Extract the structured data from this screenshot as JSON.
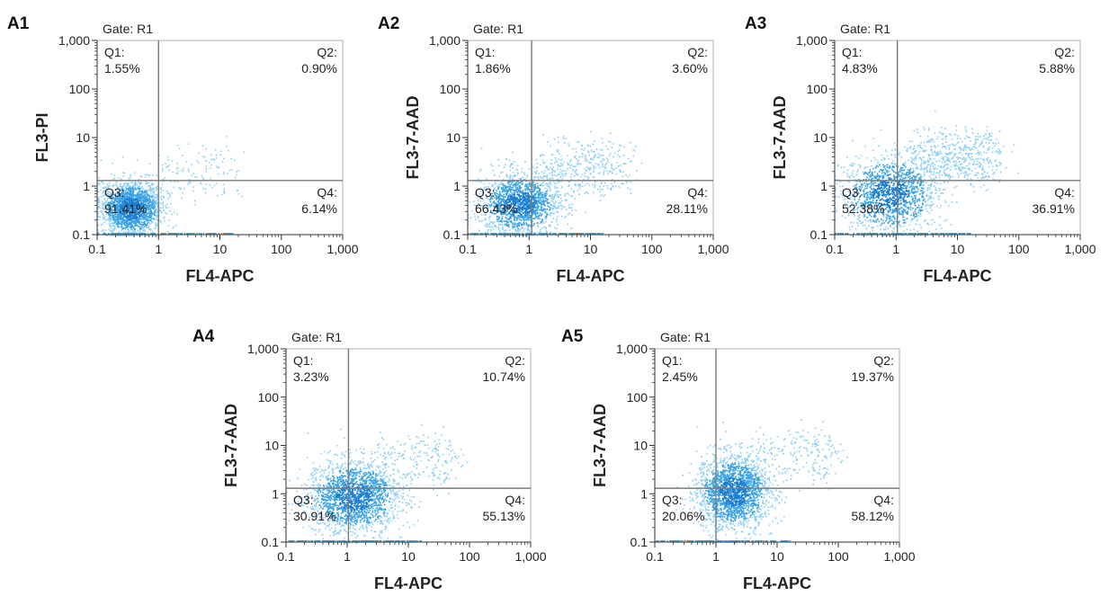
{
  "chart_data": [
    {
      "type": "scatter",
      "panel_label": "A1",
      "gate": "Gate: R1",
      "xlabel": "FL4-APC",
      "ylabel": "FL3-PI",
      "xscale": "log",
      "yscale": "log",
      "xlim": [
        0.1,
        1000
      ],
      "ylim": [
        0.1,
        1000
      ],
      "x_ticks": [
        "0.1",
        "1",
        "10",
        "100",
        "1,000"
      ],
      "y_ticks": [
        "0.1",
        "1",
        "10",
        "100",
        "1,000"
      ],
      "quadrant_gate": {
        "x": 1,
        "y": 1.3
      },
      "quadrants": [
        {
          "id": "Q1",
          "label": "Q1:",
          "value": "1.55%"
        },
        {
          "id": "Q2",
          "label": "Q2:",
          "value": "0.90%"
        },
        {
          "id": "Q3",
          "label": "Q3:",
          "value": "91.41%"
        },
        {
          "id": "Q4",
          "label": "Q4:",
          "value": "6.14%"
        }
      ]
    },
    {
      "type": "scatter",
      "panel_label": "A2",
      "gate": "Gate: R1",
      "xlabel": "FL4-APC",
      "ylabel": "FL3-7-AAD",
      "xscale": "log",
      "yscale": "log",
      "xlim": [
        0.1,
        1000
      ],
      "ylim": [
        0.1,
        1000
      ],
      "x_ticks": [
        "0.1",
        "1",
        "10",
        "100",
        "1,000"
      ],
      "y_ticks": [
        "0.1",
        "1",
        "10",
        "100",
        "1,000"
      ],
      "quadrant_gate": {
        "x": 1.1,
        "y": 1.3
      },
      "quadrants": [
        {
          "id": "Q1",
          "label": "Q1:",
          "value": "1.86%"
        },
        {
          "id": "Q2",
          "label": "Q2:",
          "value": "3.60%"
        },
        {
          "id": "Q3",
          "label": "Q3:",
          "value": "66.43%"
        },
        {
          "id": "Q4",
          "label": "Q4:",
          "value": "28.11%"
        }
      ]
    },
    {
      "type": "scatter",
      "panel_label": "A3",
      "gate": "Gate: R1",
      "xlabel": "FL4-APC",
      "ylabel": "FL3-7-AAD",
      "xscale": "log",
      "yscale": "log",
      "xlim": [
        0.1,
        1000
      ],
      "ylim": [
        0.1,
        1000
      ],
      "x_ticks": [
        "0.1",
        "1",
        "10",
        "100",
        "1,000"
      ],
      "y_ticks": [
        "0.1",
        "1",
        "10",
        "100",
        "1,000"
      ],
      "quadrant_gate": {
        "x": 1.05,
        "y": 1.3
      },
      "quadrants": [
        {
          "id": "Q1",
          "label": "Q1:",
          "value": "4.83%"
        },
        {
          "id": "Q2",
          "label": "Q2:",
          "value": "5.88%"
        },
        {
          "id": "Q3",
          "label": "Q3:",
          "value": "52.38%"
        },
        {
          "id": "Q4",
          "label": "Q4:",
          "value": "36.91%"
        }
      ]
    },
    {
      "type": "scatter",
      "panel_label": "A4",
      "gate": "Gate: R1",
      "xlabel": "FL4-APC",
      "ylabel": "FL3-7-AAD",
      "xscale": "log",
      "yscale": "log",
      "xlim": [
        0.1,
        1000
      ],
      "ylim": [
        0.1,
        1000
      ],
      "x_ticks": [
        "0.1",
        "1",
        "10",
        "100",
        "1,000"
      ],
      "y_ticks": [
        "0.1",
        "1",
        "10",
        "100",
        "1,000"
      ],
      "quadrant_gate": {
        "x": 1.05,
        "y": 1.3
      },
      "quadrants": [
        {
          "id": "Q1",
          "label": "Q1:",
          "value": "3.23%"
        },
        {
          "id": "Q2",
          "label": "Q2:",
          "value": "10.74%"
        },
        {
          "id": "Q3",
          "label": "Q3:",
          "value": "30.91%"
        },
        {
          "id": "Q4",
          "label": "Q4:",
          "value": "55.13%"
        }
      ]
    },
    {
      "type": "scatter",
      "panel_label": "A5",
      "gate": "Gate: R1",
      "xlabel": "FL4-APC",
      "ylabel": "FL3-7-AAD",
      "xscale": "log",
      "yscale": "log",
      "xlim": [
        0.1,
        1000
      ],
      "ylim": [
        0.1,
        1000
      ],
      "x_ticks": [
        "0.1",
        "1",
        "10",
        "100",
        "1,000"
      ],
      "y_ticks": [
        "0.1",
        "1",
        "10",
        "100",
        "1,000"
      ],
      "quadrant_gate": {
        "x": 1.0,
        "y": 1.3
      },
      "quadrants": [
        {
          "id": "Q1",
          "label": "Q1:",
          "value": "2.45%"
        },
        {
          "id": "Q2",
          "label": "Q2:",
          "value": "19.37%"
        },
        {
          "id": "Q3",
          "label": "Q3:",
          "value": "20.06%"
        },
        {
          "id": "Q4",
          "label": "Q4:",
          "value": "58.12%"
        }
      ]
    }
  ],
  "colors": {
    "dots_light": "#8fd0f3",
    "dots_mid": "#3aa3e3",
    "dots_dense": "#1a7fd1",
    "gate_line": "#7a7a7a",
    "frame": "#b0b0b0",
    "axis": "#333333"
  }
}
